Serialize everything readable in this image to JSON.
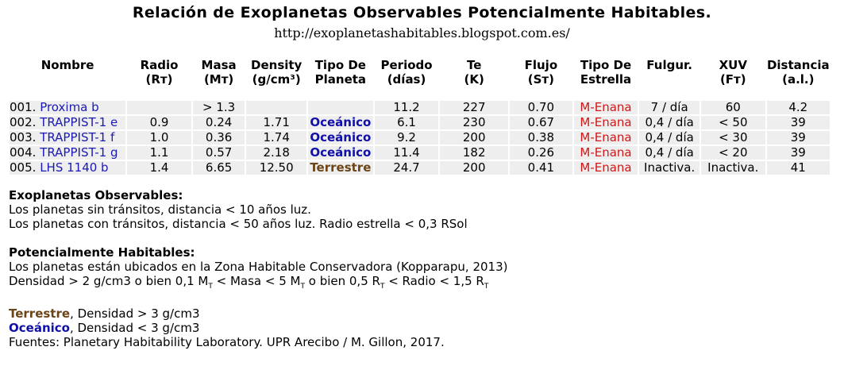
{
  "title": "Relación de Exoplanetas Observables Potencialmente Habitables.",
  "url": "http://exoplanetashabitables.blogspot.com.es/",
  "columns": [
    {
      "line1": "Nombre",
      "line2": ""
    },
    {
      "line1": "Radio",
      "line2": "(Rт)"
    },
    {
      "line1": "Masa",
      "line2": "(Mт)"
    },
    {
      "line1": "Density",
      "line2": "(g/cm³)"
    },
    {
      "line1": "Tipo De",
      "line2": "Planeta"
    },
    {
      "line1": "Periodo",
      "line2": "(días)"
    },
    {
      "line1": "Te",
      "line2": "(K)"
    },
    {
      "line1": "Flujo",
      "line2": "(Sт)"
    },
    {
      "line1": "Tipo De",
      "line2": "Estrella"
    },
    {
      "line1": "Fulgur.",
      "line2": ""
    },
    {
      "line1": "XUV",
      "line2": "(Fт)"
    },
    {
      "line1": "Distancia",
      "line2": "(a.l.)"
    }
  ],
  "rows": [
    {
      "num": "001.",
      "name": "Proxima b",
      "radio": "",
      "masa": "> 1.3",
      "density": "",
      "tipo": "",
      "tipo_class": "",
      "periodo": "11.2",
      "te": "227",
      "flujo": "0.70",
      "estrella": "M-Enana",
      "fulgur": "7 / día",
      "xuv": "60",
      "distancia": "4.2"
    },
    {
      "num": "002.",
      "name": "TRAPPIST-1 e",
      "radio": "0.9",
      "masa": "0.24",
      "density": "1.71",
      "tipo": "Oceánico",
      "tipo_class": "oceanico",
      "periodo": "6.1",
      "te": "230",
      "flujo": "0.67",
      "estrella": "M-Enana",
      "fulgur": "0,4 / día",
      "xuv": "< 50",
      "distancia": "39"
    },
    {
      "num": "003.",
      "name": "TRAPPIST-1 f",
      "radio": "1.0",
      "masa": "0.36",
      "density": "1.74",
      "tipo": "Oceánico",
      "tipo_class": "oceanico",
      "periodo": "9.2",
      "te": "200",
      "flujo": "0.38",
      "estrella": "M-Enana",
      "fulgur": "0,4 / día",
      "xuv": "< 30",
      "distancia": "39"
    },
    {
      "num": "004.",
      "name": "TRAPPIST-1 g",
      "radio": "1.1",
      "masa": "0.57",
      "density": "2.18",
      "tipo": "Oceánico",
      "tipo_class": "oceanico",
      "periodo": "11.4",
      "te": "182",
      "flujo": "0.26",
      "estrella": "M-Enana",
      "fulgur": "0,4 / día",
      "xuv": "< 20",
      "distancia": "39"
    },
    {
      "num": "005.",
      "name": "LHS 1140 b",
      "radio": "1.4",
      "masa": "6.65",
      "density": "12.50",
      "tipo": "Terrestre",
      "tipo_class": "terrestre",
      "periodo": "24.7",
      "te": "200",
      "flujo": "0.41",
      "estrella": "M-Enana",
      "fulgur": "Inactiva.",
      "xuv": "Inactiva.",
      "distancia": "41"
    }
  ],
  "observables": {
    "heading": "Exoplanetas Observables:",
    "line1": "Los planetas sin tránsitos, distancia < 10 años luz.",
    "line2": "Los planetas con tránsitos, distancia < 50 años luz. Radio estrella < 0,3 RSol"
  },
  "habitables": {
    "heading": "Potencialmente Habitables:",
    "line1": "Los planetas están ubicados en la Zona Habitable Conservadora (Kopparapu, 2013)",
    "crit_a": "Densidad > 2 g/cm3 o bien 0,1 M",
    "crit_b": " < Masa < 5 M",
    "crit_c": " o bien 0,5 R",
    "crit_d": " < Radio < 1,5 R",
    "sub_t": "T"
  },
  "legend": {
    "terrestre": "Terrestre",
    "terrestre_desc": ", Densidad > 3 g/cm3",
    "oceanico": "Oceánico",
    "oceanico_desc": ", Densidad < 3 g/cm3",
    "fuentes": "Fuentes: Planetary Habitability Laboratory. UPR Arecibo / M. Gillon, 2017."
  },
  "colors": {
    "link": "#1a1ab5",
    "m_enana": "#d01818",
    "oceanico": "#1010a8",
    "terrestre": "#6b4418",
    "row_bg": "#eeeeee"
  }
}
